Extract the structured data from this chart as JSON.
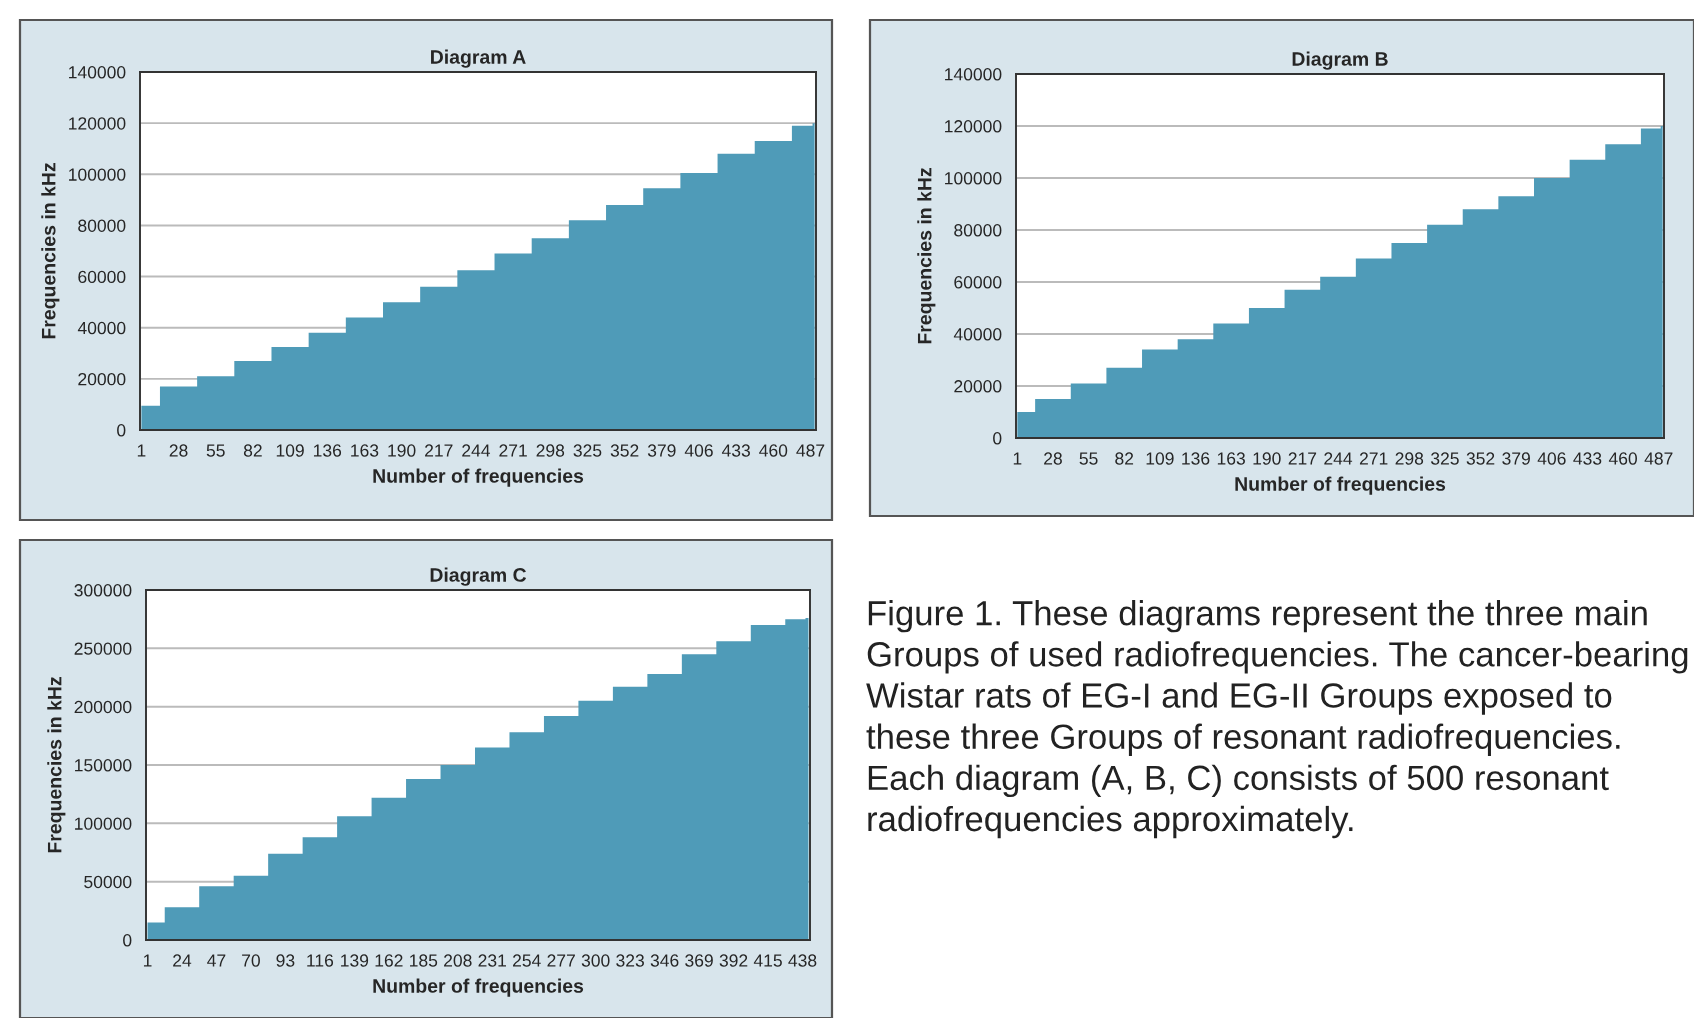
{
  "chart_data": [
    {
      "type": "area",
      "title": "Diagram A",
      "xlabel": "Number of frequencies",
      "ylabel": "Frequencies in kHz",
      "color": "#4f9bb8",
      "grid": "y",
      "legend": false,
      "x": [
        1,
        28,
        55,
        82,
        109,
        136,
        163,
        190,
        217,
        244,
        271,
        298,
        325,
        352,
        379,
        406,
        433,
        460,
        487,
        490
      ],
      "values": [
        9500,
        17000,
        21000,
        27000,
        32500,
        38000,
        44000,
        50000,
        56000,
        62500,
        69000,
        75000,
        82000,
        88000,
        94500,
        100500,
        108000,
        113000,
        119000,
        120000
      ],
      "xlim": [
        0,
        491
      ],
      "xticks": [
        1,
        28,
        55,
        82,
        109,
        136,
        163,
        190,
        217,
        244,
        271,
        298,
        325,
        352,
        379,
        406,
        433,
        460,
        487
      ],
      "ylim": [
        0,
        140000
      ],
      "yticks": [
        0,
        20000,
        40000,
        60000,
        80000,
        100000,
        120000,
        140000
      ]
    },
    {
      "type": "area",
      "title": "Diagram B",
      "xlabel": "Number of frequencies",
      "ylabel": "Frequencies in kHz",
      "color": "#4f9bb8",
      "grid": "y",
      "legend": false,
      "x": [
        1,
        28,
        55,
        82,
        109,
        136,
        163,
        190,
        217,
        244,
        271,
        298,
        325,
        352,
        379,
        406,
        433,
        460,
        487,
        490
      ],
      "values": [
        10000,
        15000,
        21000,
        27000,
        34000,
        38000,
        44000,
        50000,
        57000,
        62000,
        69000,
        75000,
        82000,
        88000,
        93000,
        100000,
        107000,
        113000,
        119000,
        120000
      ],
      "xlim": [
        0,
        491
      ],
      "xticks": [
        1,
        28,
        55,
        82,
        109,
        136,
        163,
        190,
        217,
        244,
        271,
        298,
        325,
        352,
        379,
        406,
        433,
        460,
        487
      ],
      "ylim": [
        0,
        140000
      ],
      "yticks": [
        0,
        20000,
        40000,
        60000,
        80000,
        100000,
        120000,
        140000
      ]
    },
    {
      "type": "area",
      "title": "Diagram C",
      "xlabel": "Number of frequencies",
      "ylabel": "Frequencies in kHz",
      "color": "#4f9bb8",
      "grid": "y",
      "legend": false,
      "x": [
        1,
        24,
        47,
        70,
        93,
        116,
        139,
        162,
        185,
        208,
        231,
        254,
        277,
        300,
        323,
        346,
        369,
        392,
        415,
        438,
        442
      ],
      "values": [
        15000,
        28000,
        46000,
        55000,
        74000,
        88000,
        106000,
        122000,
        138000,
        150000,
        165000,
        178000,
        192000,
        205000,
        217000,
        228000,
        245000,
        256000,
        270000,
        275000,
        276000
      ],
      "xlim": [
        0,
        443
      ],
      "xticks": [
        1,
        24,
        47,
        70,
        93,
        116,
        139,
        162,
        185,
        208,
        231,
        254,
        277,
        300,
        323,
        346,
        369,
        392,
        415,
        438
      ],
      "ylim": [
        0,
        300000
      ],
      "yticks": [
        0,
        50000,
        100000,
        150000,
        200000,
        250000,
        300000
      ]
    },
    {
      "type": "other",
      "annotations": [
        "Figure 1. These diagrams represent the three main Groups of used radiofrequencies. The cancer-bearing Wistar rats of EG-I and EG-II Groups exposed to these three Groups of resonant radiofrequencies. Each diagram (A, B, C) consists of 500 resonant radiofrequencies approximately."
      ]
    }
  ]
}
